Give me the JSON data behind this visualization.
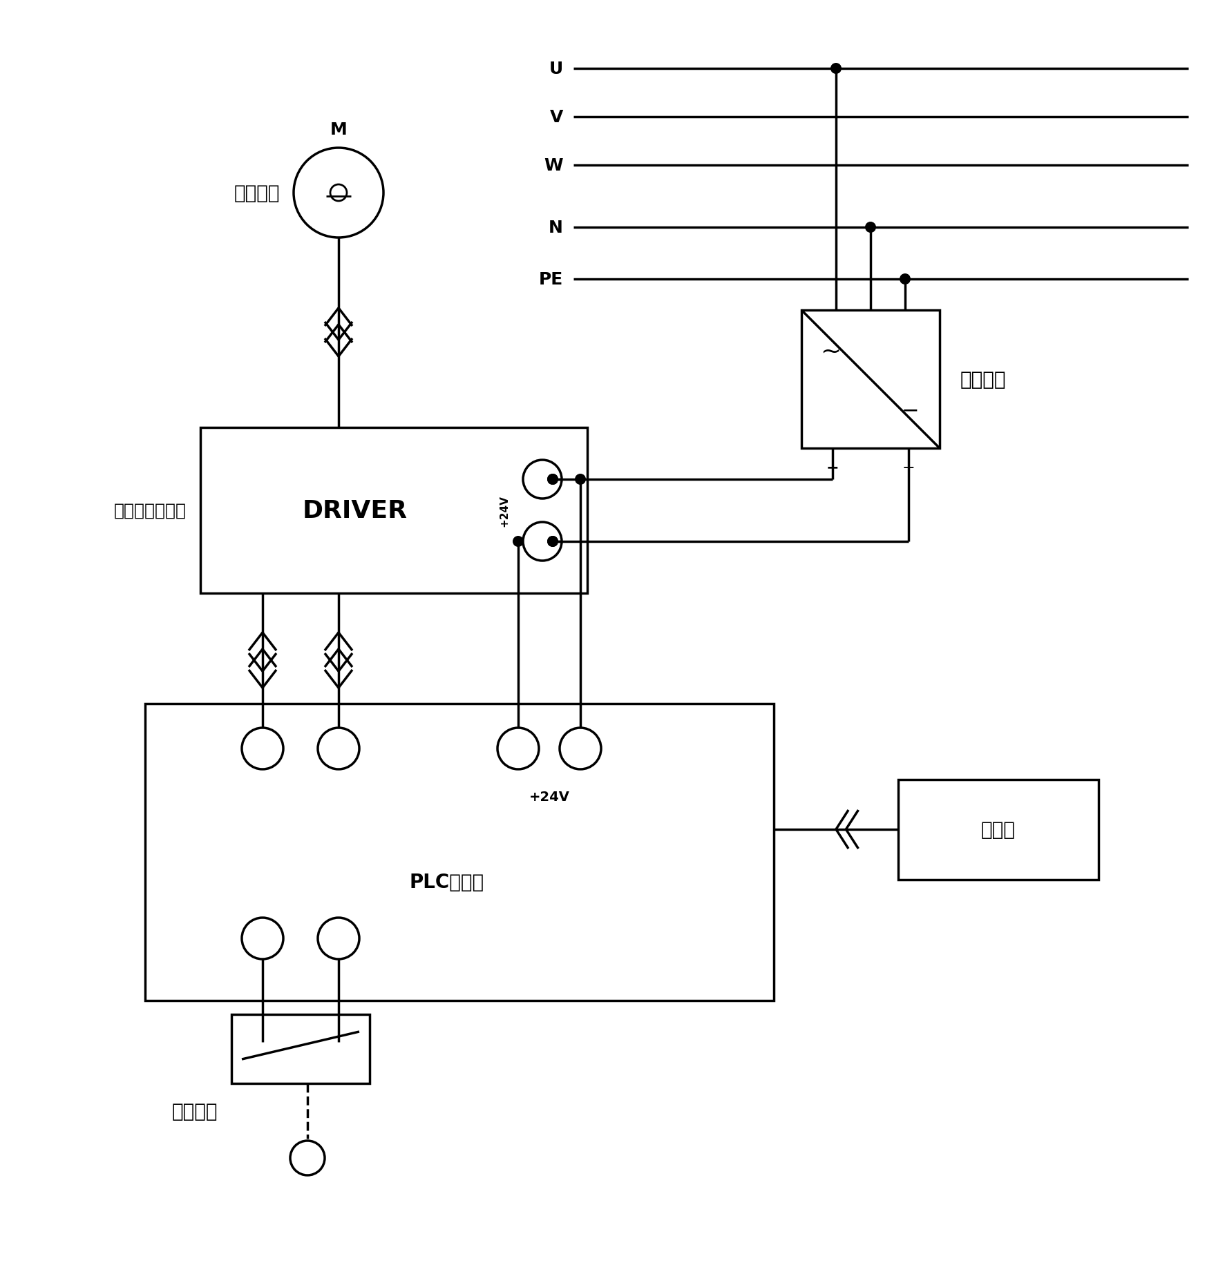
{
  "bg_color": "#ffffff",
  "line_color": "#000000",
  "lw": 2.5,
  "lw_thin": 1.5,
  "labels": {
    "stepper_motor": "步进电机",
    "stepper_driver": "步进电机驱动器",
    "driver_box": "DRIVER",
    "plc": "PLC控制器",
    "encoder": "编码器",
    "power_switch": "电源开关",
    "start_stop": "启停按鈕",
    "plus24v": "+24V",
    "motor_letter": "M"
  },
  "power_lines": [
    "U",
    "V",
    "W",
    "N",
    "PE"
  ],
  "figsize": [
    17.6,
    18.33
  ],
  "dpi": 100
}
